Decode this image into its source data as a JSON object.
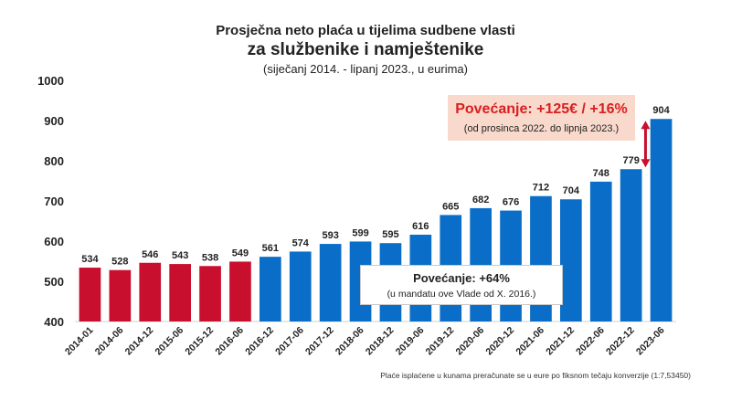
{
  "chart_data": {
    "type": "bar",
    "title": "Prosječna neto plaća u tijelima sudbene vlasti",
    "subtitle": "za službenike i namještenike",
    "subtitle2": "(siječanj 2014. - lipanj 2023., u eurima)",
    "xlabel": "",
    "ylabel": "",
    "ylim": [
      400,
      1000
    ],
    "yticks": [
      400,
      500,
      600,
      700,
      800,
      900,
      1000
    ],
    "grid": false,
    "categories": [
      "2014-01",
      "2014-06",
      "2014-12",
      "2015-06",
      "2015-12",
      "2016-06",
      "2016-12",
      "2017-06",
      "2017-12",
      "2018-06",
      "2018-12",
      "2019-06",
      "2019-12",
      "2020-06",
      "2020-12",
      "2021-06",
      "2021-12",
      "2022-06",
      "2022-12",
      "2023-06"
    ],
    "values": [
      534,
      528,
      546,
      543,
      538,
      549,
      561,
      574,
      593,
      599,
      595,
      616,
      665,
      682,
      676,
      712,
      704,
      748,
      779,
      904
    ],
    "colors": {
      "red": "#c8102e",
      "blue": "#0a6ec8",
      "arrow": "#c8102e"
    },
    "red_count": 6
  },
  "annotations": {
    "increase_recent": "Povećanje: +125€ / +16%",
    "increase_recent_sub": "(od prosinca 2022. do lipnja 2023.)",
    "increase_total": "Povećanje: +64%",
    "increase_total_sub": "(u mandatu ove Vlade od X. 2016.)"
  },
  "footnote": "Plaće isplaćene u kunama preračunate se u eure po fiksnom tečaju konverzije (1:7,53450)"
}
